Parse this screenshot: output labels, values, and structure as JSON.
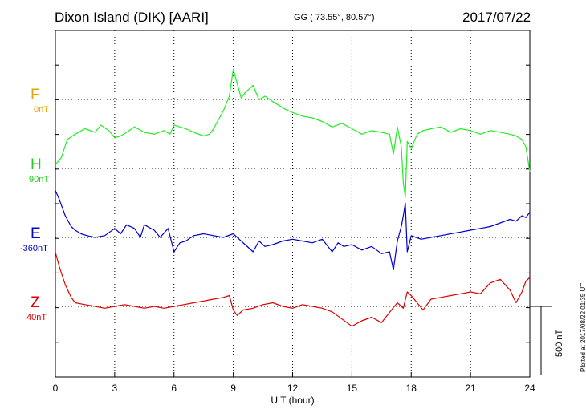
{
  "header": {
    "station": "Dixon Island (DIK)  [AARI]",
    "coords": "GG ( 73.55°,  80.57°)",
    "date": "2017/07/22"
  },
  "side_note": "Plotted at 2017/08/22 01:35 UT",
  "scale_label": "500 nT",
  "components": [
    {
      "letter": "F",
      "baseline": "0nT",
      "color": "#f0a000"
    },
    {
      "letter": "H",
      "baseline": "90nT",
      "color": "#22cc22"
    },
    {
      "letter": "E",
      "baseline": "-360nT",
      "color": "#0000cc"
    },
    {
      "letter": "Z",
      "baseline": "40nT",
      "color": "#dd0000"
    }
  ],
  "chart_data": {
    "type": "line",
    "xlabel": "U T (hour)",
    "xlim": [
      0,
      24
    ],
    "xticks": [
      "0",
      "3",
      "6",
      "9",
      "12",
      "15",
      "18",
      "21",
      "24"
    ],
    "y_unit": "nT",
    "scale_bar_nT": 500,
    "grid": true,
    "series": [
      {
        "name": "H",
        "color": "#22ee22",
        "x": [
          0,
          0.3,
          0.6,
          1,
          1.5,
          2,
          2.3,
          2.7,
          3,
          3.3,
          3.6,
          4,
          4.5,
          5,
          5.5,
          5.8,
          6,
          6.3,
          6.6,
          7,
          7.5,
          7.8,
          8,
          8.3,
          8.5,
          8.8,
          9,
          9.2,
          9.4,
          9.6,
          10,
          10.3,
          10.6,
          11,
          11.3,
          11.6,
          12,
          12.5,
          13,
          13.5,
          14,
          14.5,
          15,
          15.5,
          16,
          16.5,
          16.9,
          17.1,
          17.3,
          17.5,
          17.6,
          17.7,
          17.8,
          18,
          18.3,
          18.6,
          19,
          19.5,
          20,
          20.5,
          21,
          21.5,
          22,
          22.5,
          23,
          23.3,
          23.6,
          23.8,
          24
        ],
        "y": [
          10,
          30,
          80,
          95,
          110,
          100,
          120,
          105,
          85,
          90,
          100,
          115,
          100,
          95,
          105,
          95,
          120,
          115,
          110,
          100,
          90,
          95,
          110,
          140,
          160,
          200,
          275,
          235,
          195,
          210,
          230,
          190,
          200,
          185,
          175,
          165,
          155,
          145,
          140,
          130,
          115,
          125,
          110,
          95,
          105,
          100,
          95,
          40,
          115,
          60,
          -40,
          -80,
          75,
          55,
          95,
          105,
          110,
          115,
          100,
          110,
          105,
          95,
          105,
          100,
          95,
          90,
          80,
          60,
          -10
        ]
      },
      {
        "name": "E",
        "color": "#0000cc",
        "x": [
          0,
          0.2,
          0.5,
          0.8,
          1,
          1.3,
          1.6,
          2,
          2.5,
          3,
          3.3,
          3.6,
          4,
          4.3,
          4.5,
          5,
          5.3,
          5.7,
          6,
          6.3,
          6.6,
          7,
          7.5,
          8,
          8.5,
          9,
          9.3,
          9.6,
          10,
          10.3,
          10.6,
          11,
          11.5,
          12,
          12.5,
          13,
          13.5,
          14,
          14.3,
          14.6,
          15,
          15.5,
          16,
          16.5,
          16.9,
          17.1,
          17.3,
          17.5,
          17.6,
          17.7,
          17.8,
          18,
          18.5,
          19,
          19.5,
          20,
          20.5,
          21,
          21.5,
          22,
          22.5,
          23,
          23.3,
          23.6,
          23.8,
          24
        ],
        "y": [
          130,
          105,
          60,
          30,
          20,
          10,
          5,
          0,
          5,
          25,
          10,
          35,
          25,
          0,
          35,
          20,
          0,
          25,
          -40,
          -15,
          -10,
          5,
          10,
          5,
          0,
          10,
          -5,
          -20,
          -40,
          -10,
          -25,
          -20,
          -10,
          -5,
          -10,
          -15,
          -5,
          -40,
          -15,
          -25,
          -20,
          -35,
          -25,
          -45,
          -40,
          -90,
          -10,
          30,
          60,
          95,
          -40,
          5,
          -5,
          0,
          5,
          10,
          15,
          20,
          25,
          30,
          40,
          50,
          45,
          60,
          55,
          70
        ]
      },
      {
        "name": "Z",
        "color": "#dd0000",
        "x": [
          0,
          0.2,
          0.5,
          0.8,
          1,
          1.5,
          2,
          2.5,
          3,
          3.5,
          4,
          4.5,
          5,
          5.5,
          6,
          6.5,
          7,
          7.5,
          8,
          8.5,
          8.8,
          9,
          9.2,
          9.5,
          10,
          10.5,
          11,
          11.5,
          12,
          12.5,
          13,
          13.5,
          14,
          14.5,
          15,
          15.5,
          16,
          16.5,
          17,
          17.3,
          17.6,
          17.8,
          18,
          18.3,
          18.6,
          19,
          19.5,
          20,
          20.5,
          21,
          21.5,
          22,
          22.5,
          23,
          23.3,
          23.6,
          23.8,
          24
        ],
        "y": [
          150,
          110,
          60,
          25,
          10,
          5,
          0,
          -5,
          0,
          5,
          0,
          -5,
          0,
          -5,
          0,
          5,
          10,
          15,
          20,
          25,
          30,
          -10,
          -25,
          -10,
          -5,
          5,
          10,
          0,
          -5,
          5,
          0,
          -5,
          -15,
          -35,
          -55,
          -40,
          -30,
          -45,
          -10,
          10,
          -5,
          40,
          30,
          10,
          -10,
          20,
          25,
          30,
          35,
          40,
          35,
          65,
          75,
          45,
          10,
          40,
          70,
          80
        ]
      }
    ],
    "baselines_nT": {
      "F": 0,
      "H": 90,
      "E": -360,
      "Z": 40
    }
  }
}
